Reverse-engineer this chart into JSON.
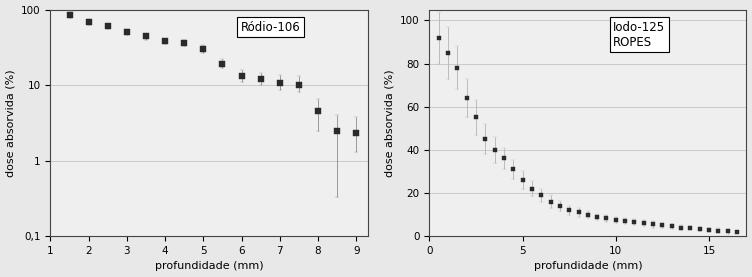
{
  "plot1": {
    "title": "Ródio-106",
    "xlabel": "profundidade (mm)",
    "ylabel": "dose absorvida (%)",
    "x": [
      1.5,
      2.0,
      2.5,
      3.0,
      3.5,
      4.0,
      4.5,
      5.0,
      5.5,
      6.0,
      6.5,
      7.0,
      7.5,
      8.0,
      8.5,
      9.0
    ],
    "y": [
      85,
      68,
      60,
      50,
      44,
      38,
      36,
      30,
      19,
      13,
      12,
      10.5,
      10,
      4.5,
      2.5,
      2.3
    ],
    "yerr_low": [
      8,
      6,
      5,
      4,
      4,
      3,
      3,
      3,
      2,
      2,
      2,
      2,
      2,
      2,
      1.5,
      1.0
    ],
    "yerr_high": [
      10,
      6,
      5,
      5,
      4,
      3,
      4,
      4,
      3,
      3,
      2.5,
      3,
      3,
      2.0,
      1.5,
      1.5
    ],
    "yerr_low_special": [
      null,
      null,
      null,
      null,
      null,
      null,
      null,
      null,
      null,
      null,
      null,
      null,
      null,
      null,
      2.3,
      null
    ],
    "big_err_idx": 14,
    "big_err_low": 2.3,
    "ylim": [
      0.1,
      200
    ],
    "ylim_display": [
      0.1,
      100
    ],
    "xlim": [
      1,
      9.3
    ],
    "xticks": [
      1,
      2,
      3,
      4,
      5,
      6,
      7,
      8,
      9
    ],
    "ytick_vals": [
      0.1,
      1,
      10,
      100
    ],
    "ytick_labels": [
      "0,1",
      "1",
      "10",
      "100"
    ],
    "color": "#2a2a2a",
    "ecolor": "#999999",
    "background": "#efefef"
  },
  "plot2": {
    "title": "Iodo-125\nROPES",
    "xlabel": "profundidade (mm)",
    "ylabel": "dose absorvida (%)",
    "x": [
      0.5,
      1.0,
      1.5,
      2.0,
      2.5,
      3.0,
      3.5,
      4.0,
      4.5,
      5.0,
      5.5,
      6.0,
      6.5,
      7.0,
      7.5,
      8.0,
      8.5,
      9.0,
      9.5,
      10.0,
      10.5,
      11.0,
      11.5,
      12.0,
      12.5,
      13.0,
      13.5,
      14.0,
      14.5,
      15.0,
      15.5,
      16.0,
      16.5
    ],
    "y": [
      92,
      85,
      78,
      64,
      55,
      45,
      40,
      36,
      31,
      26,
      22,
      19,
      16,
      14,
      12,
      11,
      10,
      9,
      8.2,
      7.5,
      7,
      6.5,
      6,
      5.5,
      5,
      4.5,
      4,
      3.8,
      3.3,
      3.0,
      2.6,
      2.2,
      1.8
    ],
    "yerr": [
      12,
      12,
      10,
      9,
      8,
      7,
      6,
      5,
      4.5,
      4,
      3.5,
      3,
      3,
      2.5,
      2,
      2,
      1.5,
      1.5,
      1.5,
      1.5,
      1.5,
      1.5,
      1.5,
      1.5,
      1,
      1,
      1,
      1,
      1,
      1,
      1,
      1,
      0.5
    ],
    "ylim": [
      0,
      105
    ],
    "xlim": [
      0,
      17
    ],
    "xticks": [
      0,
      5,
      10,
      15
    ],
    "yticks": [
      0,
      20,
      40,
      60,
      80,
      100
    ],
    "color": "#2a2a2a",
    "ecolor": "#bbbbbb",
    "background": "#efefef"
  },
  "fig_background": "#e8e8e8",
  "fig_width": 7.52,
  "fig_height": 2.77,
  "dpi": 100
}
